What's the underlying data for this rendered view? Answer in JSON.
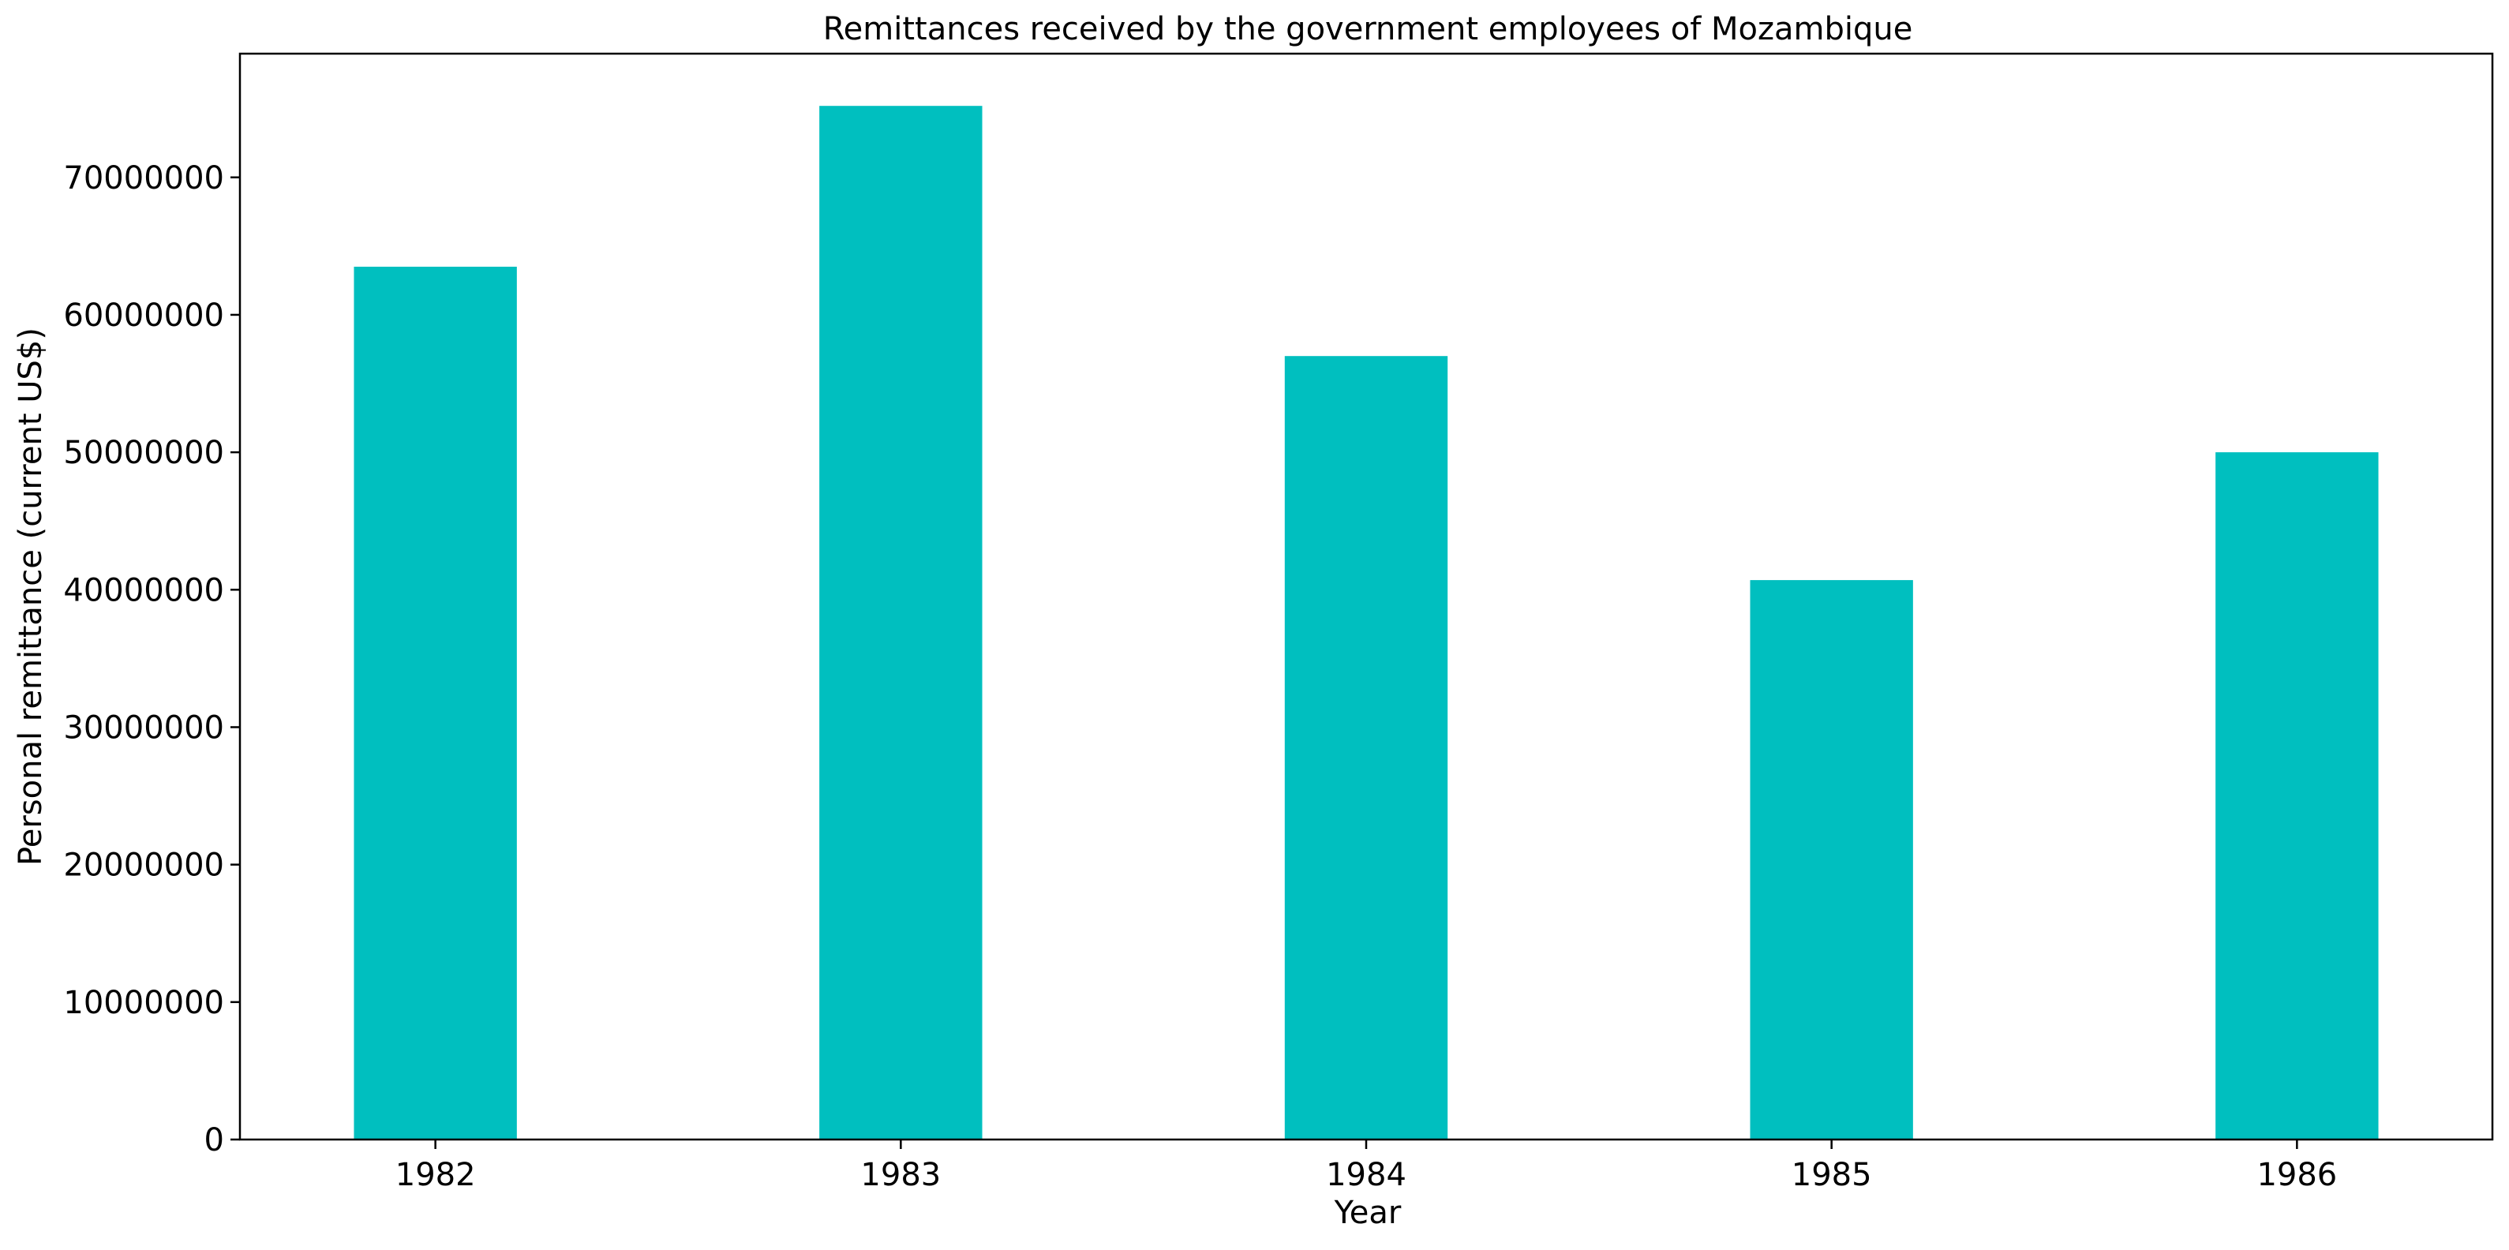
{
  "chart_data": {
    "type": "bar",
    "title": "Remittances received by the government employees of Mozambique",
    "xlabel": "Year",
    "ylabel": "Personal remittance (current US$)",
    "categories": [
      "1982",
      "1983",
      "1984",
      "1985",
      "1986"
    ],
    "values": [
      63500000,
      75200000,
      57000000,
      40700000,
      50000000
    ],
    "ylim": [
      0,
      79000000
    ],
    "yticks": [
      0,
      10000000,
      20000000,
      30000000,
      40000000,
      50000000,
      60000000,
      70000000
    ],
    "ytick_labels": [
      "0",
      "10000000",
      "20000000",
      "30000000",
      "40000000",
      "50000000",
      "60000000",
      "70000000"
    ],
    "bar_color": "#00BFBF",
    "grid": false,
    "legend": false
  }
}
